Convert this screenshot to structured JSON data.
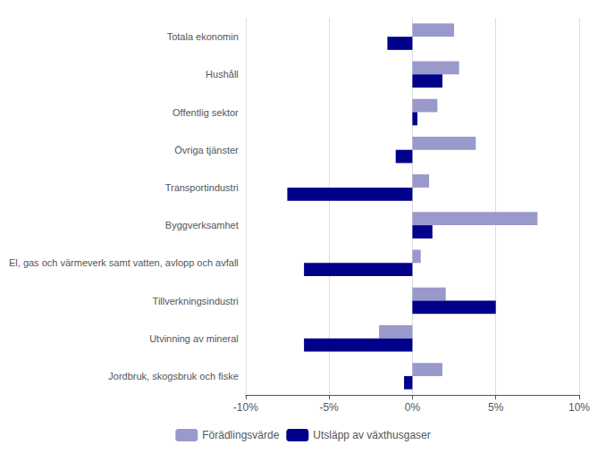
{
  "chart_data": {
    "type": "bar",
    "orientation": "horizontal",
    "categories": [
      "Totala ekonomin",
      "Hushåll",
      "Offentlig sektor",
      "Övriga tjänster",
      "Transportindustri",
      "Byggverksamhet",
      "El, gas och värmeverk samt vatten, avlopp och avfall",
      "Tillverkningsindustri",
      "Utvinning av mineral",
      "Jordbruk, skogsbruk och fiske"
    ],
    "series": [
      {
        "name": "Förädlingsvärde",
        "color": "#9999cc",
        "values": [
          2.5,
          2.8,
          1.5,
          3.8,
          1.0,
          7.5,
          0.5,
          2.0,
          -2.0,
          1.8
        ]
      },
      {
        "name": "Utsläpp av växthusgaser",
        "color": "#00008b",
        "values": [
          -1.5,
          1.8,
          0.3,
          -1.0,
          -7.5,
          1.2,
          -6.5,
          5.0,
          -6.5,
          -0.5
        ]
      }
    ],
    "xlim": [
      -10,
      10
    ],
    "xticks": [
      {
        "value": -10,
        "label": "-10%"
      },
      {
        "value": -5,
        "label": "-5%"
      },
      {
        "value": 0,
        "label": "0%"
      },
      {
        "value": 5,
        "label": "5%"
      },
      {
        "value": 10,
        "label": "10%"
      }
    ],
    "grid": true,
    "legend": "bottom"
  }
}
